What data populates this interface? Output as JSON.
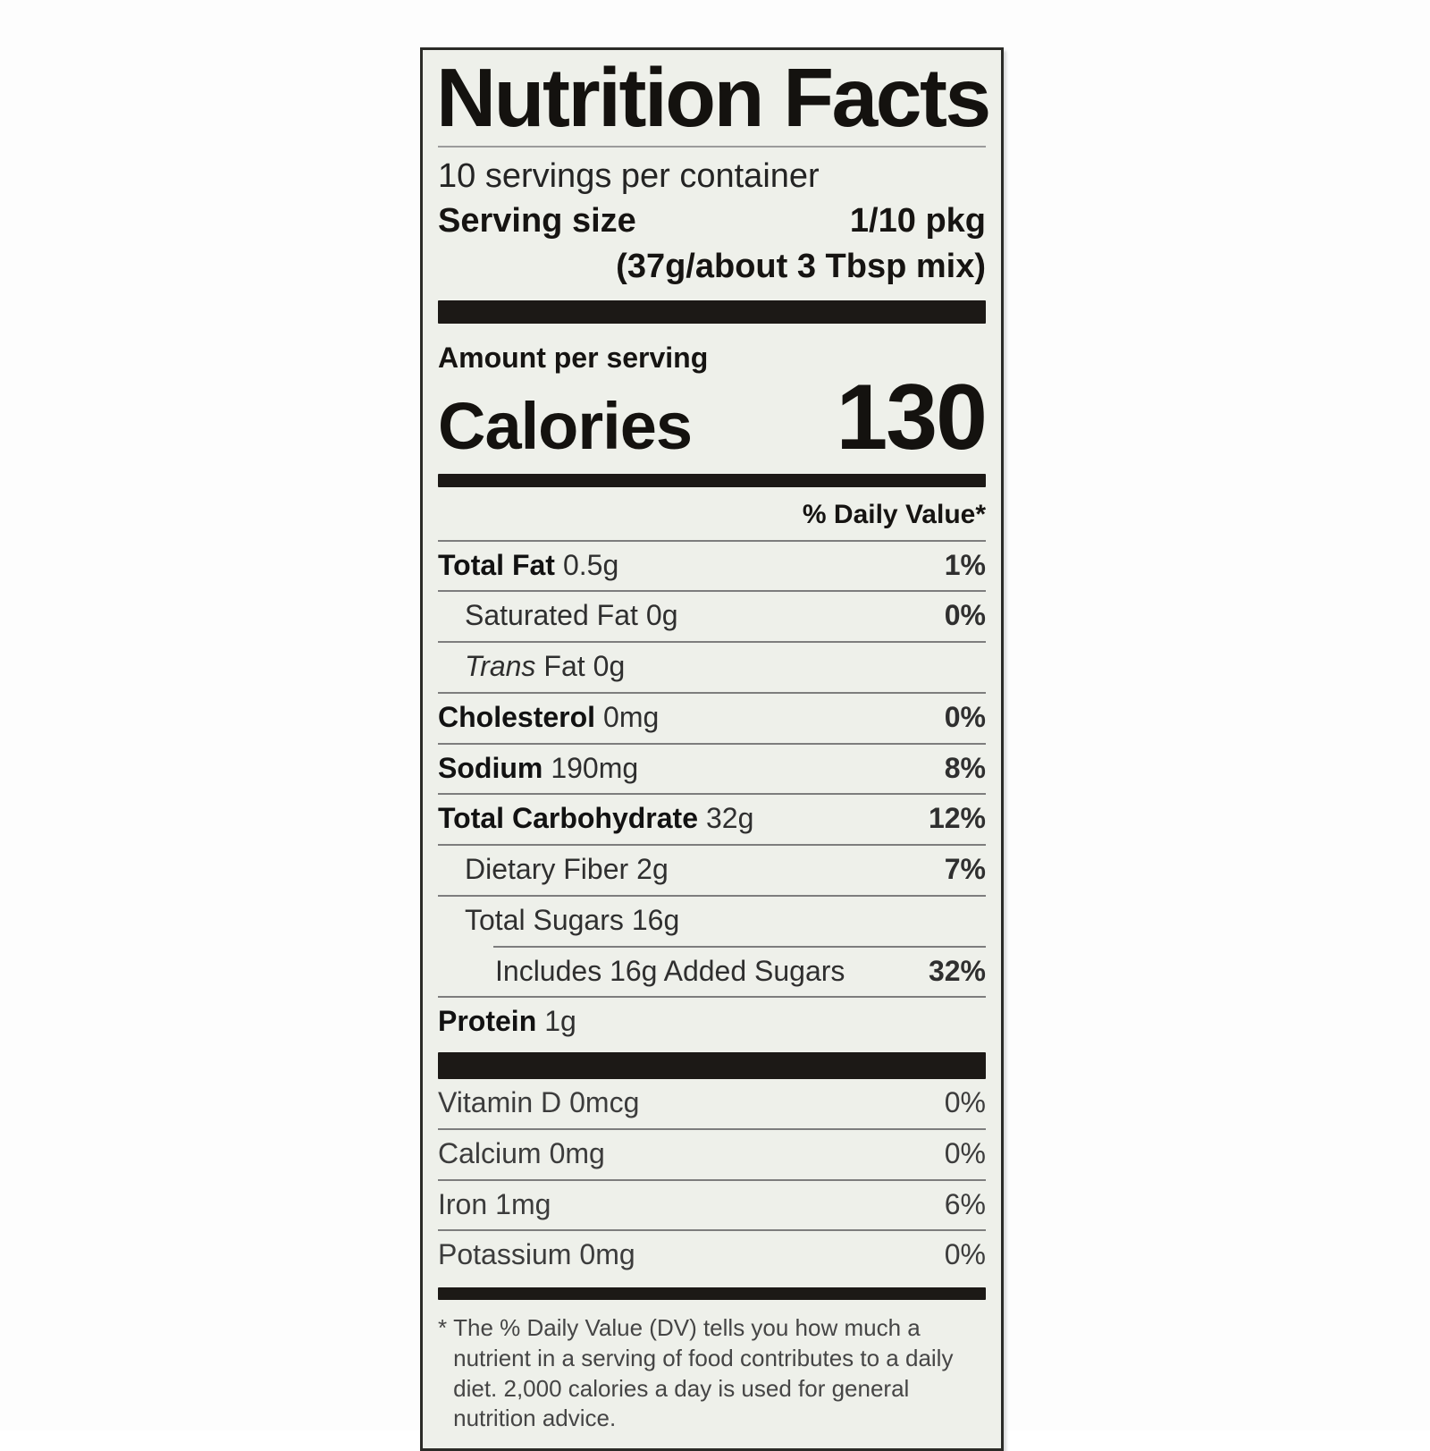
{
  "colors": {
    "page_background": "#ffffff",
    "label_background": "#eef0ea",
    "bar_color": "#1c1916",
    "text_color": "#121212"
  },
  "label": {
    "title": "Nutrition Facts",
    "servings_per_container": "10 servings per container",
    "serving_size": {
      "label": "Serving size",
      "value": "1/10 pkg",
      "detail": "(37g/about 3 Tbsp mix)"
    },
    "amount_per_serving": "Amount per serving",
    "calories": {
      "label": "Calories",
      "value": "130"
    },
    "daily_value_header": "% Daily Value*",
    "nutrients": [
      {
        "name": "Total Fat",
        "amount": "0.5g",
        "dv": "1%"
      },
      {
        "name": "Saturated Fat",
        "amount": "0g",
        "dv": "0%"
      },
      {
        "name_italic": "Trans",
        "name": "Fat",
        "amount": "0g",
        "dv": ""
      },
      {
        "name": "Cholesterol",
        "amount": "0mg",
        "dv": "0%"
      },
      {
        "name": "Sodium",
        "amount": "190mg",
        "dv": "8%"
      },
      {
        "name": "Total Carbohydrate",
        "amount": "32g",
        "dv": "12%"
      },
      {
        "name": "Dietary Fiber",
        "amount": "2g",
        "dv": "7%"
      },
      {
        "name": "Total Sugars",
        "amount": "16g",
        "dv": ""
      },
      {
        "name": "Includes 16g Added Sugars",
        "amount": "",
        "dv": "32%"
      },
      {
        "name": "Protein",
        "amount": "1g",
        "dv": ""
      }
    ],
    "vitamins": [
      {
        "name": "Vitamin D",
        "amount": "0mcg",
        "dv": "0%"
      },
      {
        "name": "Calcium",
        "amount": "0mg",
        "dv": "0%"
      },
      {
        "name": "Iron",
        "amount": "1mg",
        "dv": "6%"
      },
      {
        "name": "Potassium",
        "amount": "0mg",
        "dv": "0%"
      }
    ],
    "footnote_marker": "*",
    "footnote": "The % Daily Value (DV) tells you how much a nutrient in a serving of food contributes to a daily diet. 2,000 calories a day is used for general nutrition advice."
  }
}
